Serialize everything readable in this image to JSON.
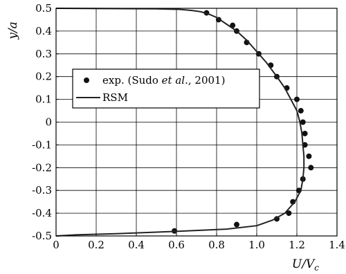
{
  "chart_data": {
    "type": "line",
    "xlabel": "U/V",
    "xlabel_sub": "c",
    "ylabel": "y/a",
    "xlim": [
      0,
      1.4
    ],
    "ylim": [
      -0.5,
      0.5
    ],
    "xticks": [
      "0",
      "0.2",
      "0.4",
      "0.6",
      "0.8",
      "1.0",
      "1.2",
      "1.4"
    ],
    "yticks": [
      "-0.5",
      "-0.4",
      "-0.3",
      "-0.2",
      "-0.1",
      "0",
      "0.1",
      "0.2",
      "0.3",
      "0.4",
      "0.5"
    ],
    "grid": true,
    "legend_position": "center-left",
    "legend": {
      "exp_prefix": "exp. (Sudo ",
      "exp_italic": "et al.",
      "exp_suffix": ", 2001)",
      "rsm": "RSM"
    },
    "series": [
      {
        "name": "exp. (Sudo et al., 2001)",
        "kind": "scatter",
        "points": [
          [
            0.75,
            0.48
          ],
          [
            0.81,
            0.45
          ],
          [
            0.88,
            0.425
          ],
          [
            0.9,
            0.4
          ],
          [
            0.95,
            0.35
          ],
          [
            1.01,
            0.3
          ],
          [
            1.07,
            0.25
          ],
          [
            1.1,
            0.2
          ],
          [
            1.15,
            0.15
          ],
          [
            1.2,
            0.1
          ],
          [
            1.22,
            0.05
          ],
          [
            1.23,
            0.0
          ],
          [
            1.24,
            -0.05
          ],
          [
            1.24,
            -0.1
          ],
          [
            1.26,
            -0.15
          ],
          [
            1.27,
            -0.2
          ],
          [
            1.23,
            -0.25
          ],
          [
            1.21,
            -0.3
          ],
          [
            1.18,
            -0.35
          ],
          [
            1.16,
            -0.4
          ],
          [
            1.1,
            -0.425
          ],
          [
            0.9,
            -0.45
          ],
          [
            0.59,
            -0.478
          ]
        ]
      },
      {
        "name": "RSM",
        "kind": "line",
        "points": [
          [
            0.0,
            0.5
          ],
          [
            0.5,
            0.498
          ],
          [
            0.62,
            0.495
          ],
          [
            0.68,
            0.49
          ],
          [
            0.72,
            0.485
          ],
          [
            0.76,
            0.475
          ],
          [
            0.8,
            0.46
          ],
          [
            0.85,
            0.43
          ],
          [
            0.9,
            0.4
          ],
          [
            0.95,
            0.36
          ],
          [
            1.0,
            0.31
          ],
          [
            1.05,
            0.26
          ],
          [
            1.1,
            0.2
          ],
          [
            1.14,
            0.15
          ],
          [
            1.17,
            0.1
          ],
          [
            1.2,
            0.05
          ],
          [
            1.215,
            0.0
          ],
          [
            1.225,
            -0.05
          ],
          [
            1.23,
            -0.1
          ],
          [
            1.235,
            -0.15
          ],
          [
            1.235,
            -0.2
          ],
          [
            1.23,
            -0.25
          ],
          [
            1.22,
            -0.3
          ],
          [
            1.19,
            -0.35
          ],
          [
            1.14,
            -0.4
          ],
          [
            1.08,
            -0.43
          ],
          [
            1.0,
            -0.455
          ],
          [
            0.85,
            -0.47
          ],
          [
            0.6,
            -0.48
          ],
          [
            0.3,
            -0.49
          ],
          [
            0.1,
            -0.495
          ],
          [
            0.0,
            -0.5
          ]
        ]
      }
    ]
  }
}
